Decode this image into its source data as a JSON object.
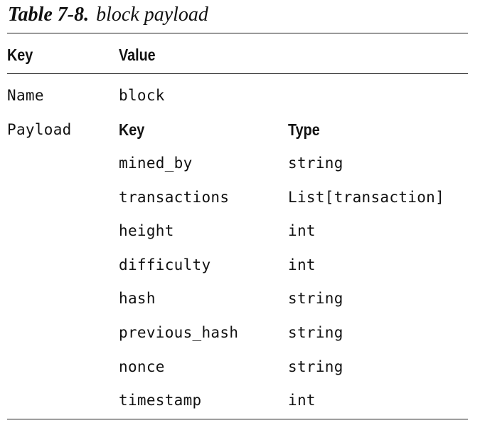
{
  "caption": {
    "number": "Table 7-8.",
    "title": "block payload"
  },
  "header": {
    "key": "Key",
    "value": "Value"
  },
  "rows": {
    "name": {
      "key": "Name",
      "value": "block"
    },
    "payload": {
      "key": "Payload",
      "sub_header": {
        "key": "Key",
        "type": "Type"
      },
      "fields": [
        {
          "key": "mined_by",
          "type": "string"
        },
        {
          "key": "transactions",
          "type": "List[transaction]"
        },
        {
          "key": "height",
          "type": "int"
        },
        {
          "key": "difficulty",
          "type": "int"
        },
        {
          "key": "hash",
          "type": "string"
        },
        {
          "key": "previous_hash",
          "type": "string"
        },
        {
          "key": "nonce",
          "type": "string"
        },
        {
          "key": "timestamp",
          "type": "int"
        }
      ]
    }
  }
}
